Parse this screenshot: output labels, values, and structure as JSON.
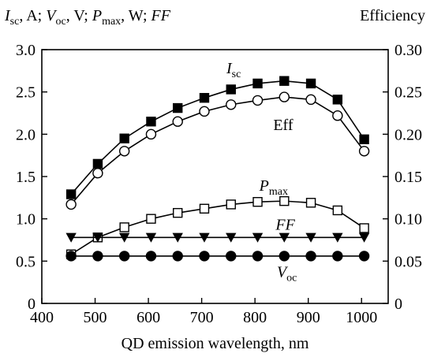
{
  "chart_data": {
    "type": "line",
    "xlabel": "QD emission wavelength, nm",
    "ylabel_left": {
      "parts": [
        {
          "text": "I",
          "style": "italic"
        },
        {
          "text": "sc",
          "style": "sub"
        },
        {
          "text": ", A; "
        },
        {
          "text": "V",
          "style": "italic"
        },
        {
          "text": "oc",
          "style": "sub"
        },
        {
          "text": ", V; "
        },
        {
          "text": "P",
          "style": "italic"
        },
        {
          "text": "max",
          "style": "sub"
        },
        {
          "text": ", W; "
        },
        {
          "text": "FF",
          "style": "italic"
        }
      ]
    },
    "ylabel_right": "Efficiency",
    "xlim": [
      400,
      1050
    ],
    "ylim_left": [
      0,
      3.0
    ],
    "ylim_right": [
      0,
      0.3
    ],
    "x_ticks": [
      400,
      500,
      600,
      700,
      800,
      900,
      1000
    ],
    "x_tick_labels": [
      "400",
      "500",
      "600",
      "700",
      "800",
      "900",
      "1000"
    ],
    "y_left_ticks": [
      0,
      0.5,
      1.0,
      1.5,
      2.0,
      2.5,
      3.0
    ],
    "y_left_tick_labels": [
      "0",
      "0.5",
      "1.0",
      "1.5",
      "2.0",
      "2.5",
      "3.0"
    ],
    "y_right_ticks": [
      0,
      0.05,
      0.1,
      0.15,
      0.2,
      0.25,
      0.3
    ],
    "y_right_tick_labels": [
      "0",
      "0.05",
      "0.10",
      "0.15",
      "0.20",
      "0.25",
      "0.30"
    ],
    "grid": false,
    "x": [
      455,
      505,
      555,
      605,
      655,
      705,
      755,
      805,
      855,
      905,
      955,
      1005
    ],
    "series": [
      {
        "name": "Isc",
        "label_parts": [
          {
            "text": "I",
            "style": "italic"
          },
          {
            "text": "sc",
            "style": "sub"
          }
        ],
        "label_at": [
          760,
          2.72
        ],
        "marker": "filled-square",
        "axis": "left",
        "values": [
          1.29,
          1.65,
          1.95,
          2.15,
          2.31,
          2.43,
          2.53,
          2.6,
          2.63,
          2.6,
          2.41,
          1.94
        ]
      },
      {
        "name": "Eff",
        "label_parts": [
          {
            "text": "Eff"
          }
        ],
        "label_at": [
          853,
          0.205
        ],
        "marker": "open-circle",
        "axis": "right",
        "values": [
          0.117,
          0.154,
          0.18,
          0.2,
          0.215,
          0.227,
          0.235,
          0.24,
          0.244,
          0.241,
          0.222,
          0.18
        ]
      },
      {
        "name": "Pmax",
        "label_parts": [
          {
            "text": "P",
            "style": "italic"
          },
          {
            "text": "max",
            "style": "sub"
          }
        ],
        "label_at": [
          835,
          1.33
        ],
        "marker": "open-square",
        "axis": "left",
        "values": [
          0.58,
          0.78,
          0.9,
          1.0,
          1.07,
          1.12,
          1.17,
          1.2,
          1.21,
          1.19,
          1.1,
          0.89
        ]
      },
      {
        "name": "FF",
        "label_parts": [
          {
            "text": "FF",
            "style": "italic"
          }
        ],
        "label_at": [
          857,
          0.87
        ],
        "marker": "filled-triangle-down",
        "axis": "left",
        "values": [
          0.78,
          0.78,
          0.78,
          0.78,
          0.78,
          0.78,
          0.78,
          0.78,
          0.78,
          0.78,
          0.78,
          0.78
        ]
      },
      {
        "name": "Voc",
        "label_parts": [
          {
            "text": "V",
            "style": "italic"
          },
          {
            "text": "oc",
            "style": "sub"
          }
        ],
        "label_at": [
          860,
          0.31
        ],
        "marker": "filled-circle",
        "axis": "left",
        "values": [
          0.56,
          0.56,
          0.56,
          0.56,
          0.56,
          0.56,
          0.56,
          0.56,
          0.56,
          0.56,
          0.56,
          0.56
        ]
      }
    ]
  }
}
